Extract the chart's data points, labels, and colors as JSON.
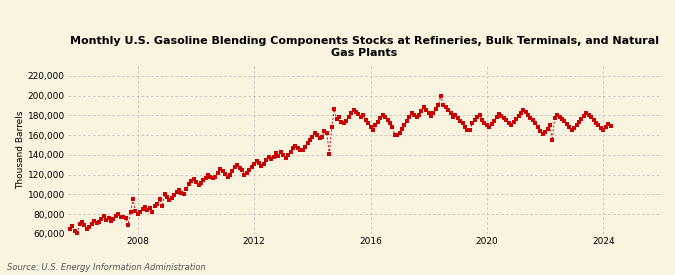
{
  "title": "Monthly U.S. Gasoline Blending Components Stocks at Refineries, Bulk Terminals, and Natural\nGas Plants",
  "ylabel": "Thousand Barrels",
  "source": "Source: U.S. Energy Information Administration",
  "bg_color": "#FAF3E0",
  "line_color": "#CC0000",
  "ylim": [
    60000,
    230000
  ],
  "yticks": [
    60000,
    80000,
    100000,
    120000,
    140000,
    160000,
    180000,
    200000,
    220000
  ],
  "ytick_labels": [
    "60,000",
    "80,000",
    "100,000",
    "120,000",
    "140,000",
    "160,000",
    "180,000",
    "200,000",
    "220,000"
  ],
  "xtick_years": [
    2008,
    2012,
    2016,
    2020,
    2024
  ],
  "xlim_start": [
    2005,
    8
  ],
  "xlim_end": [
    2026,
    1
  ],
  "data": [
    65000,
    68000,
    63000,
    61000,
    70000,
    72000,
    69000,
    65000,
    67000,
    70000,
    73000,
    71000,
    72000,
    75000,
    78000,
    74000,
    76000,
    73000,
    75000,
    78000,
    80000,
    77000,
    77000,
    76000,
    69000,
    82000,
    95000,
    83000,
    80000,
    82000,
    85000,
    87000,
    84000,
    86000,
    82000,
    88000,
    90000,
    95000,
    88000,
    100000,
    97000,
    94000,
    96000,
    99000,
    102000,
    104000,
    101000,
    100000,
    105000,
    110000,
    113000,
    115000,
    112000,
    109000,
    111000,
    114000,
    117000,
    120000,
    118000,
    116000,
    118000,
    122000,
    126000,
    124000,
    121000,
    118000,
    120000,
    124000,
    128000,
    130000,
    127000,
    125000,
    120000,
    122000,
    125000,
    128000,
    131000,
    134000,
    132000,
    129000,
    131000,
    135000,
    138000,
    136000,
    138000,
    142000,
    139000,
    143000,
    140000,
    137000,
    140000,
    143000,
    147000,
    149000,
    147000,
    145000,
    145000,
    148000,
    152000,
    155000,
    158000,
    162000,
    160000,
    157000,
    158000,
    164000,
    162000,
    141000,
    168000,
    186000,
    176000,
    178000,
    173000,
    172000,
    174000,
    178000,
    182000,
    185000,
    183000,
    181000,
    178000,
    180000,
    175000,
    172000,
    168000,
    165000,
    170000,
    173000,
    177000,
    180000,
    178000,
    175000,
    172000,
    168000,
    160000,
    160000,
    162000,
    166000,
    170000,
    174000,
    178000,
    182000,
    180000,
    178000,
    180000,
    184000,
    188000,
    185000,
    182000,
    179000,
    182000,
    186000,
    190000,
    200000,
    190000,
    188000,
    185000,
    182000,
    178000,
    180000,
    177000,
    174000,
    172000,
    168000,
    165000,
    165000,
    172000,
    175000,
    178000,
    180000,
    175000,
    172000,
    170000,
    168000,
    171000,
    174000,
    178000,
    181000,
    179000,
    177000,
    175000,
    172000,
    170000,
    173000,
    176000,
    179000,
    182000,
    185000,
    183000,
    180000,
    177000,
    175000,
    172000,
    168000,
    164000,
    161000,
    163000,
    166000,
    170000,
    155000,
    177000,
    180000,
    178000,
    176000,
    174000,
    171000,
    168000,
    165000,
    167000,
    170000,
    173000,
    176000,
    179000,
    182000,
    180000,
    178000,
    175000,
    172000,
    170000,
    167000,
    165000,
    168000,
    171000,
    169000
  ],
  "start_year": 2005,
  "start_month": 9
}
